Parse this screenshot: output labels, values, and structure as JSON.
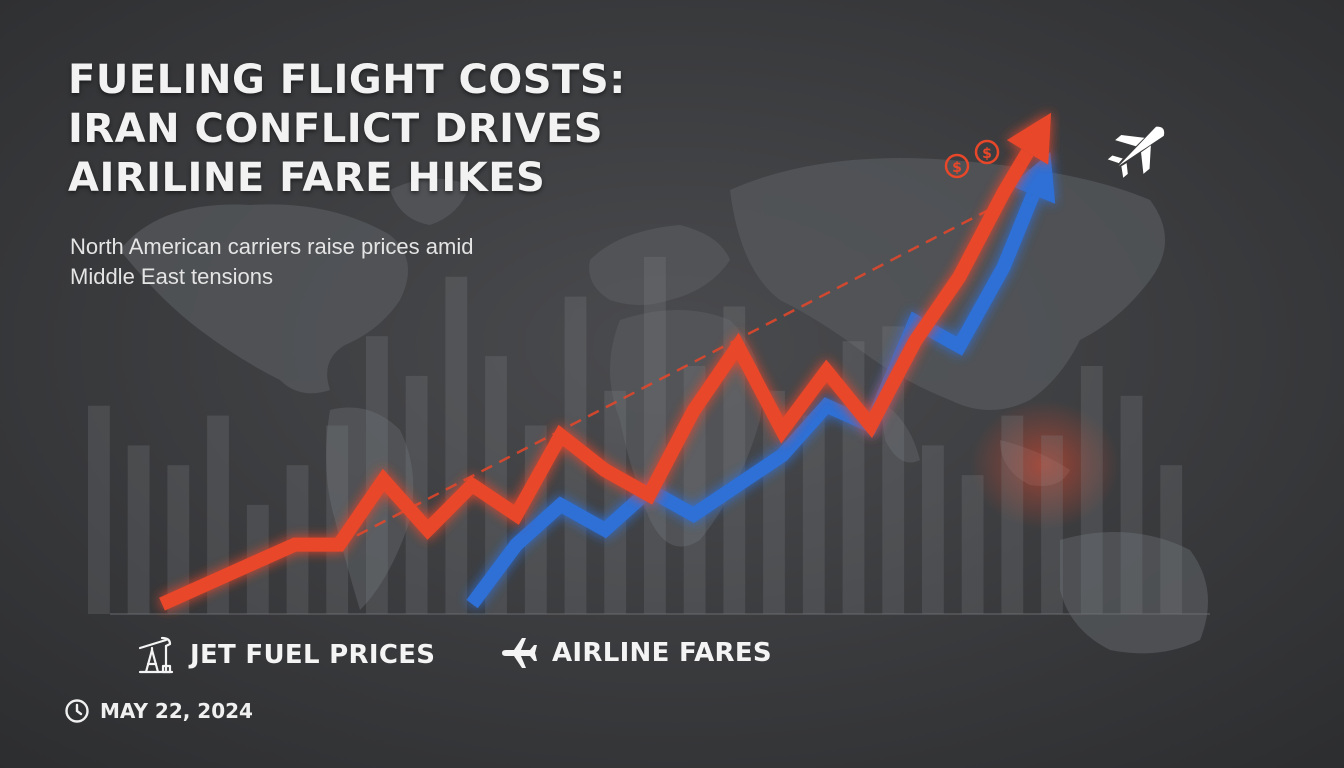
{
  "headline": {
    "lines": [
      "FUELING FLIGHT COSTS:",
      "IRAN CONFLICT DRIVES",
      "AIRILINE FARE HIKES"
    ]
  },
  "subheadline": {
    "lines": [
      "North American carriers raise prices amid",
      "Middle East tensions"
    ]
  },
  "date": "MAY 22, 2024",
  "colors": {
    "fuel": "#e8472a",
    "fares": "#2f6fd6",
    "background": "#3a3b3d",
    "text": "#f2f2f2"
  },
  "icons": {
    "fuel": "oil-pump-icon",
    "fares": "airplane-icon",
    "date": "clock-icon",
    "money": "dollar-coin-icon",
    "flight": "jet-icon"
  },
  "chart_data": {
    "type": "line",
    "title": "",
    "xlabel": "",
    "ylabel": "",
    "grid": false,
    "axes_visible": false,
    "legend_position": "bottom",
    "x": [
      0,
      1,
      2,
      3,
      4,
      5,
      6,
      7,
      8,
      9,
      10,
      11,
      12,
      13,
      14,
      15,
      16,
      17,
      18,
      19,
      20
    ],
    "xlim": [
      0,
      20
    ],
    "ylim": [
      0,
      100
    ],
    "series": [
      {
        "name": "JET FUEL PRICES",
        "color": "#e8472a",
        "values": [
          2,
          6,
          10,
          14,
          14,
          27,
          17,
          26,
          20,
          36,
          29,
          24,
          41,
          54,
          37,
          49,
          38,
          55,
          68,
          85,
          100
        ],
        "trend_start": [
          4,
          14
        ],
        "trend_end": [
          19,
          83
        ]
      },
      {
        "name": "AIRLINE FARES",
        "color": "#2f6fd6",
        "x": [
          7,
          8,
          9,
          10,
          11,
          12,
          13,
          14,
          15,
          16,
          17,
          18,
          19,
          20
        ],
        "values": [
          2,
          14,
          22,
          17,
          25,
          20,
          26,
          32,
          42,
          38,
          59,
          54,
          70,
          92
        ]
      }
    ],
    "decor_bars": [
      42,
      34,
      30,
      40,
      22,
      30,
      38,
      56,
      48,
      68,
      52,
      38,
      64,
      45,
      72,
      50,
      62,
      45,
      40,
      55,
      58,
      34,
      28,
      40,
      36,
      50,
      44,
      30
    ]
  }
}
